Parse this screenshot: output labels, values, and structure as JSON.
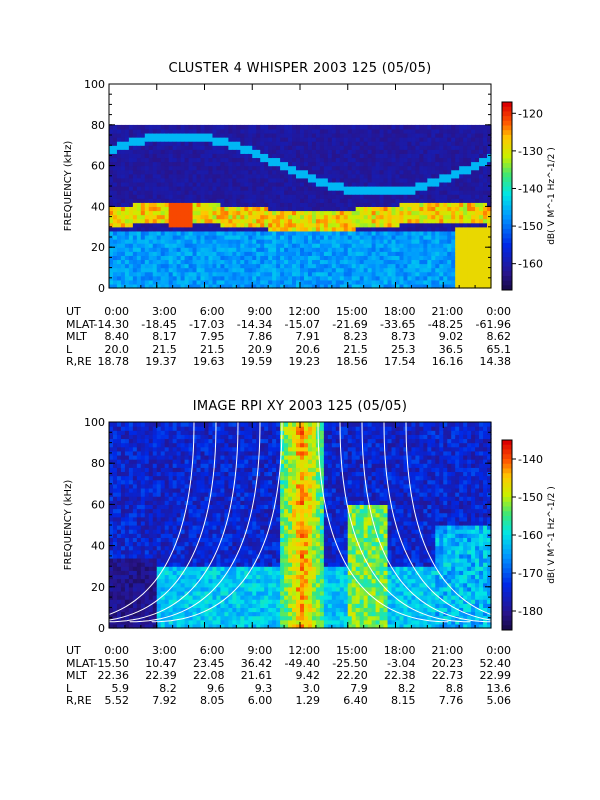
{
  "chart_data": [
    {
      "type": "heatmap",
      "title": "CLUSTER 4 WHISPER 2003 125 (05/05)",
      "ylabel": "FREQUENCY (kHz)",
      "ylim": [
        0,
        100
      ],
      "yticks": [
        "0",
        "20",
        "40",
        "60",
        "80",
        "100"
      ],
      "xlim": [
        "0:00",
        "0:00"
      ],
      "colorbar": {
        "label": "dB( V M^-1 Hz^-1/2 )",
        "range": [
          -167,
          -117
        ],
        "ticks": [
          "-120",
          "-130",
          "-140",
          "-150",
          "-160"
        ]
      },
      "ephemeris": [
        {
          "label": "UT",
          "values": [
            "0:00",
            "3:00",
            "6:00",
            "9:00",
            "12:00",
            "15:00",
            "18:00",
            "21:00",
            "0:00"
          ]
        },
        {
          "label": "MLAT",
          "values": [
            "-14.30",
            "-18.45",
            "-17.03",
            "-14.34",
            "-15.07",
            "-21.69",
            "-33.65",
            "-48.25",
            "-61.96"
          ]
        },
        {
          "label": "MLT",
          "values": [
            "8.40",
            "8.17",
            "7.95",
            "7.86",
            "7.91",
            "8.23",
            "8.73",
            "9.02",
            "8.62"
          ]
        },
        {
          "label": "L",
          "values": [
            "20.0",
            "21.5",
            "21.5",
            "20.9",
            "20.6",
            "21.5",
            "25.3",
            "36.5",
            "65.1"
          ]
        },
        {
          "label": "R,RE",
          "values": [
            "18.78",
            "19.37",
            "19.63",
            "19.59",
            "19.23",
            "18.56",
            "17.54",
            "16.16",
            "14.38"
          ]
        }
      ]
    },
    {
      "type": "heatmap",
      "title": "IMAGE RPI XY 2003 125 (05/05)",
      "ylabel": "FREQUENCY (kHz)",
      "ylim": [
        0,
        100
      ],
      "yticks": [
        "0",
        "20",
        "40",
        "60",
        "80",
        "100"
      ],
      "xlim": [
        "0:00",
        "0:00"
      ],
      "colorbar": {
        "label": "dB( V M^-1 Hz^-1/2 )",
        "range": [
          -185,
          -135
        ],
        "ticks": [
          "-140",
          "-150",
          "-160",
          "-170",
          "-180"
        ]
      },
      "ephemeris": [
        {
          "label": "UT",
          "values": [
            "0:00",
            "3:00",
            "6:00",
            "9:00",
            "12:00",
            "15:00",
            "18:00",
            "21:00",
            "0:00"
          ]
        },
        {
          "label": "MLAT",
          "values": [
            "-15.50",
            "10.47",
            "23.45",
            "36.42",
            "-49.40",
            "-25.50",
            "-3.04",
            "20.23",
            "52.40"
          ]
        },
        {
          "label": "MLT",
          "values": [
            "22.36",
            "22.39",
            "22.08",
            "21.61",
            "9.42",
            "22.20",
            "22.38",
            "22.73",
            "22.99"
          ]
        },
        {
          "label": "L",
          "values": [
            "5.9",
            "8.2",
            "9.6",
            "9.3",
            "3.0",
            "7.9",
            "8.2",
            "8.8",
            "13.6"
          ]
        },
        {
          "label": "R,RE",
          "values": [
            "5.52",
            "7.92",
            "8.05",
            "6.00",
            "1.29",
            "6.40",
            "8.15",
            "7.76",
            "5.06"
          ]
        }
      ]
    }
  ],
  "colors": {
    "background": "#ffffff",
    "axis": "#000000",
    "cutoff_line": "#ffffff"
  }
}
